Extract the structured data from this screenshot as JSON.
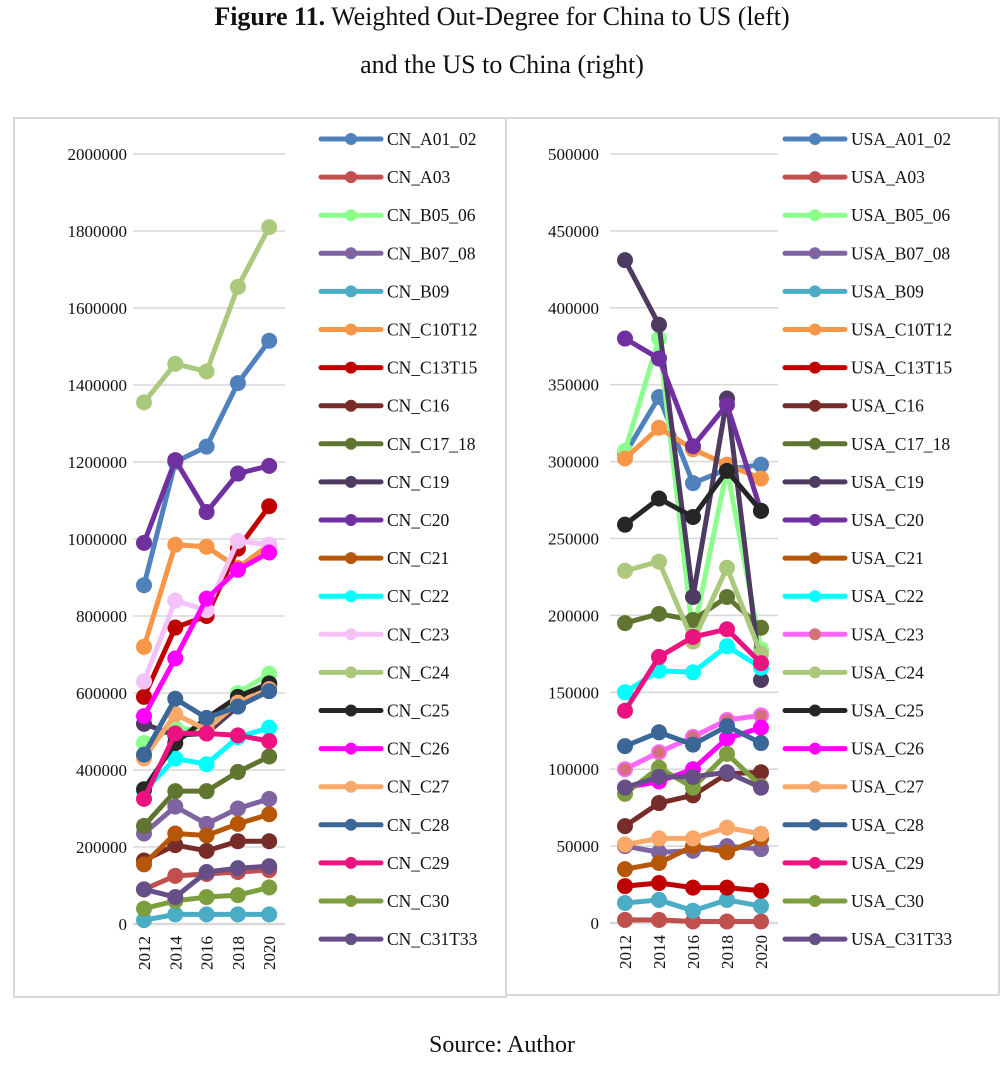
{
  "figure": {
    "title_bold": "Figure 11.",
    "title_rest": " Weighted Out-Degree for China to US (left)",
    "title_line2": "and the US to China (right)",
    "source": "Source: Author"
  },
  "chart_data": [
    {
      "type": "line",
      "title": "China to US",
      "xlabel": "",
      "ylabel": "",
      "x": [
        "2012",
        "2014",
        "2016",
        "2018",
        "2020"
      ],
      "ylim": [
        0,
        2000000
      ],
      "yticks": [
        "0",
        "200000",
        "400000",
        "600000",
        "800000",
        "1000000",
        "1200000",
        "1400000",
        "1600000",
        "1800000",
        "2000000"
      ],
      "grid": true,
      "legend_position": "right",
      "series": [
        {
          "name": "CN_A01_02",
          "color": "#4F81BD",
          "values": [
            880000,
            1200000,
            1240000,
            1405000,
            1515000
          ]
        },
        {
          "name": "CN_A03",
          "color": "#C0504D",
          "values": [
            90000,
            125000,
            130000,
            135000,
            140000
          ]
        },
        {
          "name": "CN_B05_06",
          "color": "#8CFF8C",
          "values": [
            470000,
            510000,
            500000,
            600000,
            650000
          ]
        },
        {
          "name": "CN_B07_08",
          "color": "#8064A2",
          "values": [
            235000,
            305000,
            260000,
            300000,
            325000
          ]
        },
        {
          "name": "CN_B09",
          "color": "#4BACC6",
          "values": [
            10000,
            25000,
            25000,
            25000,
            25000
          ]
        },
        {
          "name": "CN_C10T12",
          "color": "#F79646",
          "values": [
            720000,
            985000,
            980000,
            925000,
            985000
          ]
        },
        {
          "name": "CN_C13T15",
          "color": "#C00000",
          "values": [
            590000,
            770000,
            800000,
            975000,
            1085000
          ]
        },
        {
          "name": "CN_C16",
          "color": "#772C2A",
          "values": [
            165000,
            205000,
            190000,
            215000,
            215000
          ]
        },
        {
          "name": "CN_C17_18",
          "color": "#5F7530",
          "values": [
            255000,
            345000,
            345000,
            395000,
            435000
          ]
        },
        {
          "name": "CN_C19",
          "color": "#4D3B62",
          "values": [
            520000,
            490000,
            495000,
            565000,
            620000
          ]
        },
        {
          "name": "CN_C20",
          "color": "#7030A0",
          "values": [
            990000,
            1205000,
            1070000,
            1170000,
            1190000
          ]
        },
        {
          "name": "CN_C21",
          "color": "#B65708",
          "values": [
            155000,
            235000,
            230000,
            260000,
            285000
          ]
        },
        {
          "name": "CN_C22",
          "color": "#00FFFF",
          "values": [
            345000,
            430000,
            415000,
            485000,
            510000
          ]
        },
        {
          "name": "CN_C23",
          "color": "#F4C2F9",
          "values": [
            630000,
            840000,
            815000,
            995000,
            985000
          ]
        },
        {
          "name": "CN_C24",
          "color": "#ABC97D",
          "values": [
            1355000,
            1455000,
            1435000,
            1655000,
            1810000
          ]
        },
        {
          "name": "CN_C25",
          "color": "#262626",
          "values": [
            350000,
            470000,
            535000,
            590000,
            625000
          ]
        },
        {
          "name": "CN_C26",
          "color": "#FF00FF",
          "values": [
            540000,
            690000,
            845000,
            920000,
            965000
          ]
        },
        {
          "name": "CN_C27",
          "color": "#F9A86A",
          "values": [
            430000,
            545000,
            505000,
            575000,
            610000
          ]
        },
        {
          "name": "CN_C28",
          "color": "#3A6698",
          "values": [
            440000,
            585000,
            535000,
            565000,
            605000
          ]
        },
        {
          "name": "CN_C29",
          "color": "#EC1380",
          "values": [
            325000,
            495000,
            495000,
            490000,
            475000
          ]
        },
        {
          "name": "CN_C30",
          "color": "#7D9E3F",
          "values": [
            40000,
            60000,
            70000,
            75000,
            95000
          ]
        },
        {
          "name": "CN_C31T33",
          "color": "#654F86",
          "values": [
            90000,
            70000,
            135000,
            145000,
            150000
          ]
        }
      ]
    },
    {
      "type": "line",
      "title": "US to China",
      "xlabel": "",
      "ylabel": "",
      "x": [
        "2012",
        "2014",
        "2016",
        "2018",
        "2020"
      ],
      "ylim": [
        0,
        500000
      ],
      "yticks": [
        "0",
        "50000",
        "100000",
        "150000",
        "200000",
        "250000",
        "300000",
        "350000",
        "400000",
        "450000",
        "500000"
      ],
      "grid": true,
      "legend_position": "right",
      "series": [
        {
          "name": "USA_A01_02",
          "color": "#4F81BD",
          "values": [
            305000,
            342000,
            286000,
            295000,
            298000
          ]
        },
        {
          "name": "USA_A03",
          "color": "#C0504D",
          "values": [
            2000,
            2000,
            1000,
            1000,
            1000
          ]
        },
        {
          "name": "USA_B05_06",
          "color": "#8CFF8C",
          "values": [
            307000,
            380000,
            187000,
            295000,
            178000
          ]
        },
        {
          "name": "USA_B07_08",
          "color": "#8064A2",
          "values": [
            50000,
            46000,
            47000,
            50000,
            48000
          ]
        },
        {
          "name": "USA_B09",
          "color": "#4BACC6",
          "values": [
            13000,
            15000,
            8000,
            15000,
            11000
          ]
        },
        {
          "name": "USA_C10T12",
          "color": "#F79646",
          "values": [
            302000,
            322000,
            308000,
            298000,
            289000
          ]
        },
        {
          "name": "USA_C13T15",
          "color": "#C00000",
          "values": [
            24000,
            26000,
            23000,
            23000,
            21000
          ]
        },
        {
          "name": "USA_C16",
          "color": "#772C2A",
          "values": [
            63000,
            78000,
            83000,
            97000,
            98000
          ]
        },
        {
          "name": "USA_C17_18",
          "color": "#5F7530",
          "values": [
            195000,
            201000,
            197000,
            212000,
            192000
          ]
        },
        {
          "name": "USA_C19",
          "color": "#4D3B62",
          "values": [
            431000,
            389000,
            212000,
            341000,
            158000
          ]
        },
        {
          "name": "USA_C20",
          "color": "#7030A0",
          "values": [
            380000,
            367000,
            310000,
            337000,
            268000
          ]
        },
        {
          "name": "USA_C21",
          "color": "#B65708",
          "values": [
            35000,
            39000,
            50000,
            46000,
            55000
          ]
        },
        {
          "name": "USA_C22",
          "color": "#00FFFF",
          "values": [
            150000,
            164000,
            163000,
            180000,
            166000
          ]
        },
        {
          "name": "USA_C23",
          "color": "#FF66FF",
          "marker": "#D3707A",
          "values": [
            100000,
            111000,
            121000,
            132000,
            135000
          ]
        },
        {
          "name": "USA_C24",
          "color": "#ABC97D",
          "values": [
            229000,
            235000,
            183000,
            231000,
            175000
          ]
        },
        {
          "name": "USA_C25",
          "color": "#262626",
          "values": [
            259000,
            276000,
            264000,
            294000,
            268000
          ]
        },
        {
          "name": "USA_C26",
          "color": "#FF00FF",
          "values": [
            88000,
            92000,
            100000,
            120000,
            127000
          ]
        },
        {
          "name": "USA_C27",
          "color": "#F9A86A",
          "values": [
            51000,
            55000,
            55000,
            62000,
            58000
          ]
        },
        {
          "name": "USA_C28",
          "color": "#3A6698",
          "values": [
            115000,
            124000,
            116000,
            128000,
            117000
          ]
        },
        {
          "name": "USA_C29",
          "color": "#EC1380",
          "values": [
            138000,
            173000,
            186000,
            191000,
            169000
          ]
        },
        {
          "name": "USA_C30",
          "color": "#7D9E3F",
          "values": [
            84000,
            101000,
            88000,
            110000,
            89000
          ]
        },
        {
          "name": "USA_C31T33",
          "color": "#654F86",
          "values": [
            88000,
            95000,
            95000,
            98000,
            88000
          ]
        }
      ]
    }
  ]
}
